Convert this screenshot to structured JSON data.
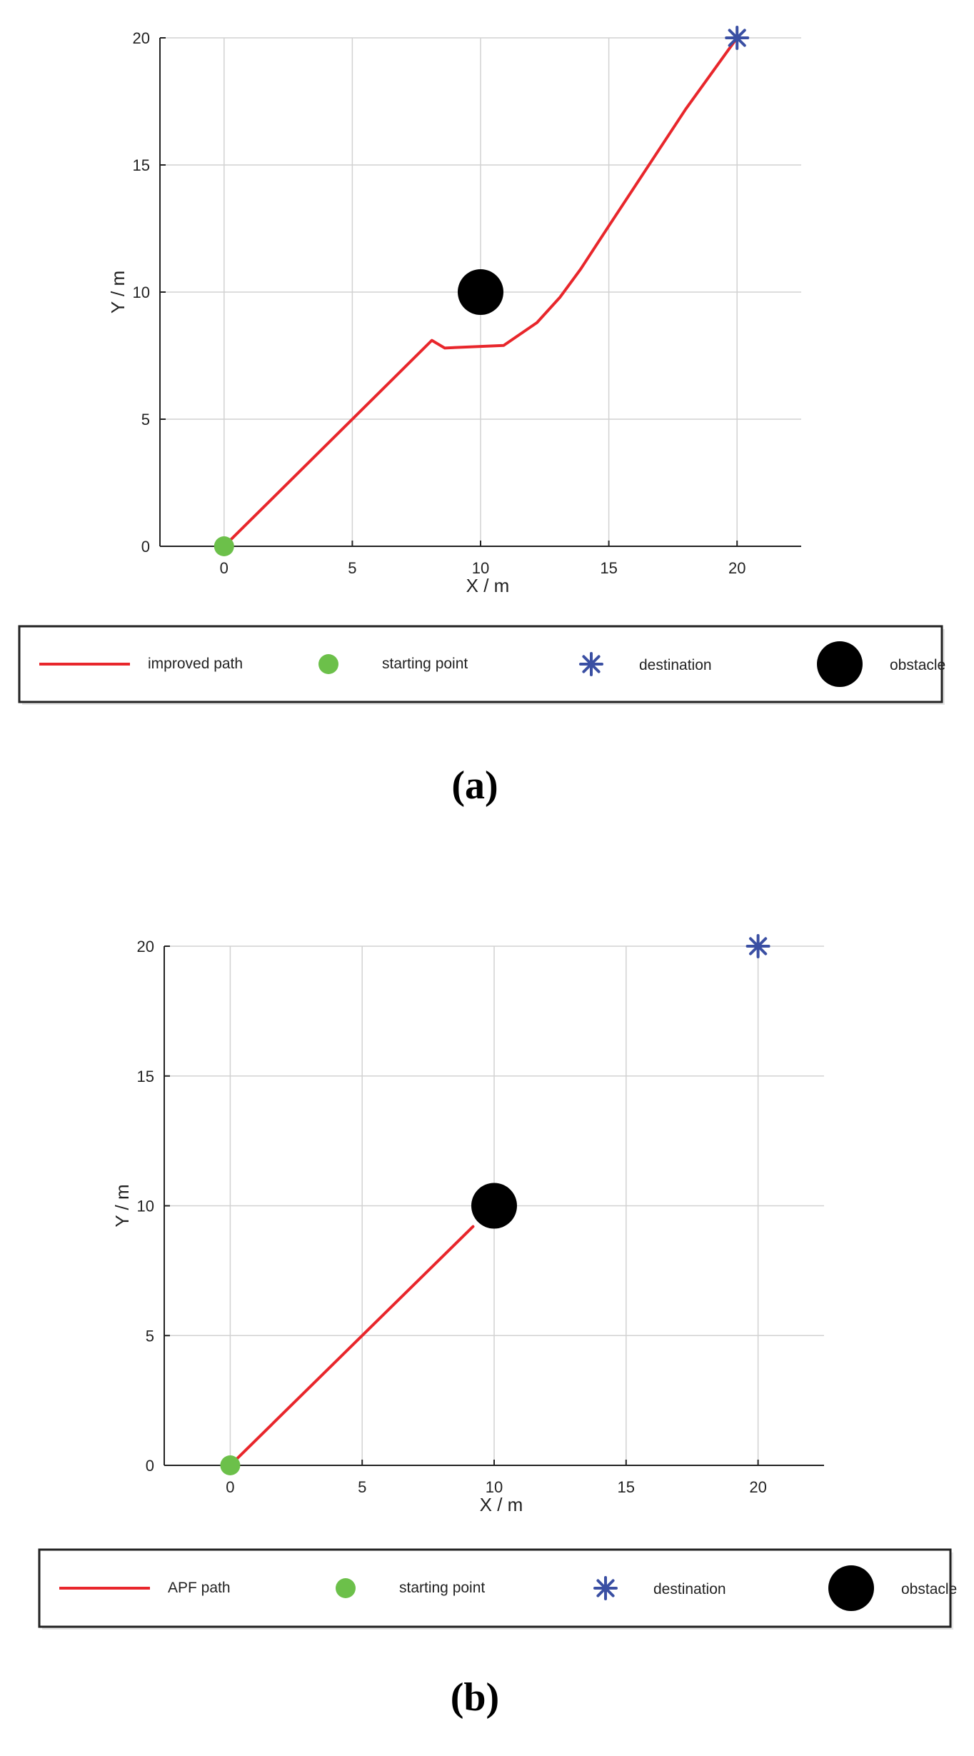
{
  "chart_data": [
    {
      "type": "line",
      "title": "",
      "caption": "(a)",
      "xlabel": "X / m",
      "ylabel": "Y / m",
      "xlim": [
        -2.5,
        22.5
      ],
      "ylim": [
        0,
        20
      ],
      "xticks": [
        0,
        5,
        10,
        15,
        20
      ],
      "yticks": [
        0,
        5,
        10,
        15,
        20
      ],
      "grid": true,
      "legend_position": "bottom",
      "colors": {
        "path": "#e8262b",
        "start": "#6cc04a",
        "destination": "#3a4fa3",
        "obstacle": "#000000"
      },
      "series": [
        {
          "name": "improved path",
          "x": [
            0,
            8.1,
            8.6,
            10.9,
            12.2,
            13.1,
            13.9,
            15.0,
            16.5,
            18.0,
            20.0
          ],
          "y": [
            0,
            8.1,
            7.8,
            7.9,
            8.8,
            9.8,
            10.9,
            12.6,
            14.9,
            17.2,
            20.0
          ]
        }
      ],
      "markers": [
        {
          "name": "starting point",
          "kind": "start",
          "x": 0,
          "y": 0
        },
        {
          "name": "destination",
          "kind": "destination",
          "x": 20,
          "y": 20
        },
        {
          "name": "obstacle",
          "kind": "obstacle",
          "x": 10,
          "y": 10
        }
      ],
      "legend": [
        "improved path",
        "starting point",
        "destination",
        "obstacle"
      ]
    },
    {
      "type": "line",
      "title": "",
      "caption": "(b)",
      "xlabel": "X / m",
      "ylabel": "Y / m",
      "xlim": [
        -2.5,
        22.5
      ],
      "ylim": [
        0,
        20
      ],
      "xticks": [
        0,
        5,
        10,
        15,
        20
      ],
      "yticks": [
        0,
        5,
        10,
        15,
        20
      ],
      "grid": true,
      "legend_position": "bottom",
      "colors": {
        "path": "#e8262b",
        "start": "#6cc04a",
        "destination": "#3a4fa3",
        "obstacle": "#000000"
      },
      "series": [
        {
          "name": "APF path",
          "x": [
            0,
            9.2
          ],
          "y": [
            0,
            9.2
          ]
        }
      ],
      "markers": [
        {
          "name": "starting point",
          "kind": "start",
          "x": 0,
          "y": 0
        },
        {
          "name": "destination",
          "kind": "destination",
          "x": 20,
          "y": 20
        },
        {
          "name": "obstacle",
          "kind": "obstacle",
          "x": 10,
          "y": 10
        }
      ],
      "legend": [
        "APF path",
        "starting point",
        "destination",
        "obstacle"
      ]
    }
  ]
}
